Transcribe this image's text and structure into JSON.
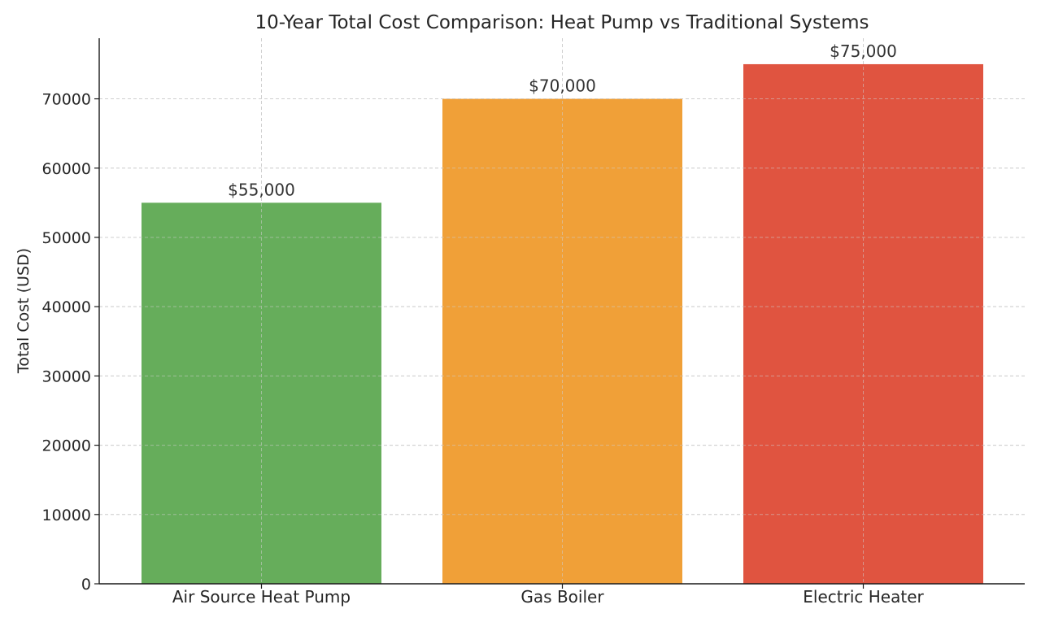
{
  "chart_data": {
    "type": "bar",
    "title": "10-Year Total Cost Comparison: Heat Pump vs Traditional Systems",
    "xlabel": "",
    "ylabel": "Total Cost (USD)",
    "categories": [
      "Air Source Heat Pump",
      "Gas Boiler",
      "Electric Heater"
    ],
    "values": [
      55000,
      70000,
      75000
    ],
    "data_labels": [
      "$55,000",
      "$70,000",
      "$75,000"
    ],
    "colors": [
      "#66ad5b",
      "#f0a038",
      "#e05440"
    ],
    "ylim": [
      0,
      78750
    ],
    "yticks": [
      0,
      10000,
      20000,
      30000,
      40000,
      50000,
      60000,
      70000
    ],
    "ytick_labels": [
      "0",
      "10000",
      "20000",
      "30000",
      "40000",
      "50000",
      "60000",
      "70000"
    ],
    "grid": true,
    "legend": "none"
  }
}
